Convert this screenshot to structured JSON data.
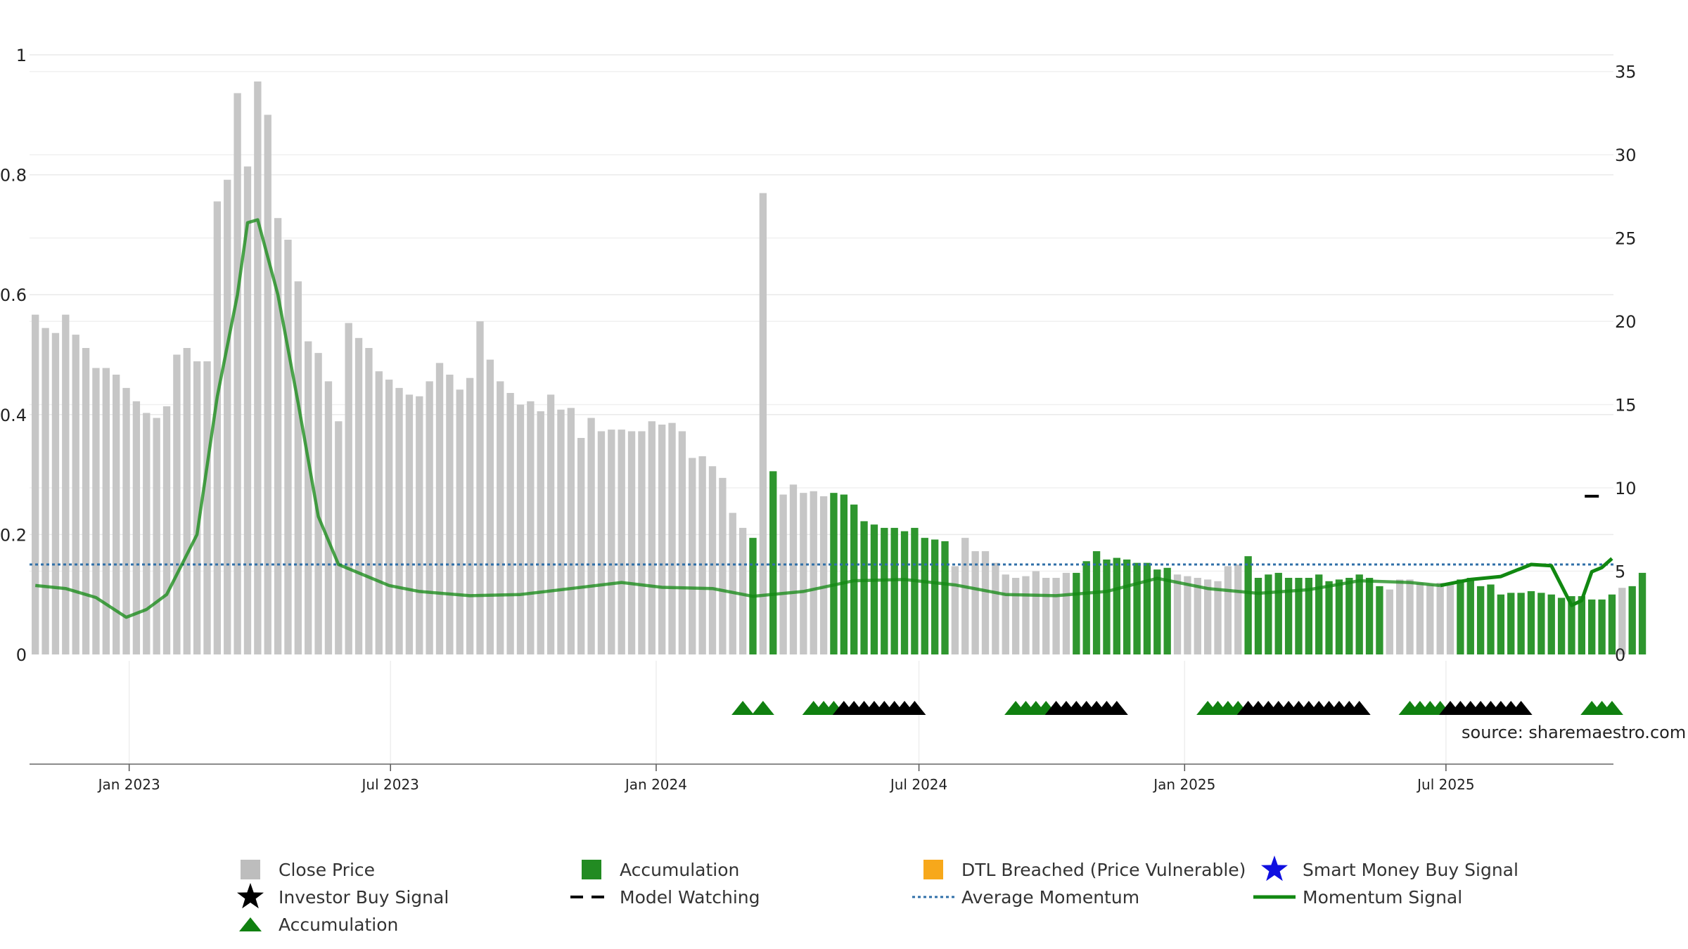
{
  "chart_data": {
    "type": "bar",
    "title": "",
    "y_left": {
      "ticks": [
        0,
        0.2,
        0.4,
        0.6,
        0.8,
        1
      ],
      "tick_labels": [
        "0",
        "0.2",
        "0.4",
        "0.6",
        "0.8",
        "1"
      ],
      "range": [
        0,
        1
      ]
    },
    "y_right": {
      "ticks": [
        0,
        5,
        10,
        15,
        20,
        25,
        30,
        35
      ],
      "range": [
        0,
        36
      ]
    },
    "x_axis": {
      "ticks": [
        "2023-01-01",
        "2023-07-01",
        "2024-01-01",
        "2024-07-01",
        "2025-01-01",
        "2025-07-01"
      ],
      "tick_labels": [
        "Jan 2023",
        "Jul 2023",
        "Jan 2024",
        "Jul 2024",
        "Jan 2025",
        "Jul 2025"
      ],
      "range": [
        "2022-10-24",
        "2025-10-25"
      ]
    },
    "bars": {
      "start": "2022-10-28",
      "interval_days": 7,
      "values": [
        20.4,
        19.6,
        19.3,
        20.4,
        19.2,
        18.4,
        17.2,
        17.2,
        16.8,
        16.0,
        15.2,
        14.5,
        14.2,
        14.9,
        18.0,
        18.4,
        17.6,
        17.6,
        27.2,
        28.5,
        33.7,
        29.3,
        34.4,
        32.4,
        26.2,
        24.9,
        22.4,
        18.8,
        18.1,
        16.4,
        14.0,
        19.9,
        19.0,
        18.4,
        17.0,
        16.5,
        16.0,
        15.6,
        15.5,
        16.4,
        17.5,
        16.8,
        15.9,
        16.6,
        20.0,
        17.7,
        16.4,
        15.7,
        15.0,
        15.2,
        14.6,
        15.6,
        14.7,
        14.8,
        13.0,
        14.2,
        13.4,
        13.5,
        13.5,
        13.4,
        13.4,
        14.0,
        13.8,
        13.9,
        13.4,
        11.8,
        11.9,
        11.3,
        10.6,
        8.5,
        7.6,
        7.0,
        27.7,
        11.0,
        9.6,
        10.2,
        9.7,
        9.8,
        9.5,
        9.7,
        9.6,
        9.0,
        8.0,
        7.8,
        7.6,
        7.6,
        7.4,
        7.6,
        7.0,
        6.9,
        6.8,
        5.3,
        7.0,
        6.2,
        6.2,
        5.5,
        4.8,
        4.6,
        4.7,
        5.0,
        4.6,
        4.6,
        4.9,
        4.9,
        5.6,
        6.2,
        5.7,
        5.8,
        5.7,
        5.5,
        5.5,
        5.1,
        5.2,
        4.8,
        4.7,
        4.6,
        4.5,
        4.4,
        5.3,
        5.4,
        5.9,
        4.6,
        4.8,
        4.9,
        4.6,
        4.6,
        4.6,
        4.8,
        4.4,
        4.5,
        4.6,
        4.8,
        4.6,
        4.1,
        3.9,
        4.5,
        4.5,
        4.3,
        4.2,
        4.3,
        4.3,
        4.5,
        4.6,
        4.1,
        4.2,
        3.6,
        3.7,
        3.7,
        3.8,
        3.7,
        3.6,
        3.4,
        3.5,
        3.5,
        3.3,
        3.3,
        3.6,
        4.0,
        4.1,
        4.9
      ],
      "accumulation_ranges": [
        [
          71,
          71
        ],
        [
          73,
          73
        ],
        [
          79,
          90
        ],
        [
          103,
          112
        ],
        [
          120,
          133
        ],
        [
          141,
          156
        ],
        [
          157,
          157
        ],
        [
          158,
          160
        ]
      ],
      "grey_overrides": [
        157
      ]
    },
    "momentum_line": {
      "x": [
        "2022-10-28",
        "2022-11-18",
        "2022-12-09",
        "2022-12-30",
        "2023-01-13",
        "2023-01-27",
        "2023-02-17",
        "2023-03-03",
        "2023-03-17",
        "2023-03-24",
        "2023-03-31",
        "2023-04-14",
        "2023-04-28",
        "2023-05-12",
        "2023-05-26",
        "2023-06-09",
        "2023-06-30",
        "2023-07-21",
        "2023-08-25",
        "2023-09-29",
        "2023-11-03",
        "2023-12-08",
        "2024-01-05",
        "2024-02-09",
        "2024-03-08",
        "2024-04-12",
        "2024-05-17",
        "2024-06-21",
        "2024-07-26",
        "2024-08-30",
        "2024-10-04",
        "2024-11-08",
        "2024-12-13",
        "2025-01-17",
        "2025-02-21",
        "2025-03-28",
        "2025-05-02",
        "2025-06-06",
        "2025-06-27",
        "2025-07-18",
        "2025-08-08",
        "2025-08-29",
        "2025-09-12",
        "2025-09-26",
        "2025-10-03",
        "2025-10-10",
        "2025-10-17",
        "2025-10-24"
      ],
      "y": [
        0.115,
        0.11,
        0.095,
        0.062,
        0.075,
        0.1,
        0.2,
        0.43,
        0.6,
        0.72,
        0.725,
        0.6,
        0.42,
        0.23,
        0.15,
        0.136,
        0.115,
        0.105,
        0.098,
        0.1,
        0.11,
        0.12,
        0.112,
        0.11,
        0.097,
        0.105,
        0.123,
        0.125,
        0.116,
        0.1,
        0.098,
        0.105,
        0.127,
        0.11,
        0.102,
        0.108,
        0.123,
        0.12,
        0.115,
        0.125,
        0.13,
        0.15,
        0.148,
        0.082,
        0.09,
        0.138,
        0.145,
        0.16
      ],
      "bold_from": "2025-06-27"
    },
    "average_momentum": 0.15,
    "model_watching": {
      "date": "2025-10-10",
      "value": 9.5
    },
    "signals": [
      {
        "date": "2024-03-01",
        "type": "accumulation"
      },
      {
        "date": "2024-03-15",
        "type": "accumulation"
      },
      {
        "date": "2024-04-19",
        "type": "accumulation"
      },
      {
        "date": "2024-04-26",
        "type": "accumulation"
      },
      {
        "date": "2024-05-03",
        "type": "accumulation"
      },
      {
        "date": "2024-05-10",
        "type": "investor"
      },
      {
        "date": "2024-05-17",
        "type": "investor"
      },
      {
        "date": "2024-05-24",
        "type": "investor"
      },
      {
        "date": "2024-05-31",
        "type": "investor"
      },
      {
        "date": "2024-06-07",
        "type": "investor"
      },
      {
        "date": "2024-06-14",
        "type": "investor"
      },
      {
        "date": "2024-06-21",
        "type": "investor"
      },
      {
        "date": "2024-06-28",
        "type": "investor"
      },
      {
        "date": "2024-09-06",
        "type": "accumulation"
      },
      {
        "date": "2024-09-13",
        "type": "accumulation"
      },
      {
        "date": "2024-09-20",
        "type": "accumulation"
      },
      {
        "date": "2024-09-27",
        "type": "accumulation"
      },
      {
        "date": "2024-10-04",
        "type": "investor"
      },
      {
        "date": "2024-10-11",
        "type": "investor"
      },
      {
        "date": "2024-10-18",
        "type": "investor"
      },
      {
        "date": "2024-10-25",
        "type": "investor"
      },
      {
        "date": "2024-11-01",
        "type": "investor"
      },
      {
        "date": "2024-11-08",
        "type": "investor"
      },
      {
        "date": "2024-11-15",
        "type": "investor"
      },
      {
        "date": "2025-01-17",
        "type": "accumulation"
      },
      {
        "date": "2025-01-24",
        "type": "accumulation"
      },
      {
        "date": "2025-01-31",
        "type": "accumulation"
      },
      {
        "date": "2025-02-07",
        "type": "accumulation"
      },
      {
        "date": "2025-02-14",
        "type": "investor"
      },
      {
        "date": "2025-02-21",
        "type": "investor"
      },
      {
        "date": "2025-02-28",
        "type": "investor"
      },
      {
        "date": "2025-03-07",
        "type": "investor"
      },
      {
        "date": "2025-03-14",
        "type": "investor"
      },
      {
        "date": "2025-03-21",
        "type": "investor"
      },
      {
        "date": "2025-03-28",
        "type": "investor"
      },
      {
        "date": "2025-04-04",
        "type": "investor"
      },
      {
        "date": "2025-04-11",
        "type": "investor"
      },
      {
        "date": "2025-04-18",
        "type": "investor"
      },
      {
        "date": "2025-04-25",
        "type": "investor"
      },
      {
        "date": "2025-05-02",
        "type": "investor"
      },
      {
        "date": "2025-06-06",
        "type": "accumulation"
      },
      {
        "date": "2025-06-13",
        "type": "accumulation"
      },
      {
        "date": "2025-06-20",
        "type": "accumulation"
      },
      {
        "date": "2025-06-27",
        "type": "accumulation"
      },
      {
        "date": "2025-07-04",
        "type": "investor"
      },
      {
        "date": "2025-07-11",
        "type": "investor"
      },
      {
        "date": "2025-07-18",
        "type": "investor"
      },
      {
        "date": "2025-07-25",
        "type": "investor"
      },
      {
        "date": "2025-08-01",
        "type": "investor"
      },
      {
        "date": "2025-08-08",
        "type": "investor"
      },
      {
        "date": "2025-08-15",
        "type": "investor"
      },
      {
        "date": "2025-08-22",
        "type": "investor"
      },
      {
        "date": "2025-10-10",
        "type": "accumulation"
      },
      {
        "date": "2025-10-17",
        "type": "accumulation"
      },
      {
        "date": "2025-10-24",
        "type": "accumulation"
      }
    ],
    "legend": [
      {
        "label": "Close Price",
        "symbol": "square",
        "color": "#bdbdbd"
      },
      {
        "label": "Accumulation",
        "symbol": "square",
        "color": "#228b22"
      },
      {
        "label": "DTL Breached (Price Vulnerable)",
        "symbol": "square",
        "color": "#f7a81b"
      },
      {
        "label": "Smart Money Buy Signal",
        "symbol": "star",
        "color": "#1010e0"
      },
      {
        "label": "Investor Buy Signal",
        "symbol": "star",
        "color": "#000000"
      },
      {
        "label": "Model Watching",
        "symbol": "dash",
        "color": "#000000"
      },
      {
        "label": "Average Momentum",
        "symbol": "dotted",
        "color": "#2f6fa8"
      },
      {
        "label": "Momentum Signal",
        "symbol": "line",
        "color": "#118811"
      },
      {
        "label": "Accumulation",
        "symbol": "triangle",
        "color": "#108010"
      }
    ],
    "legend_placement": "bottom",
    "grid": true,
    "watermark": "source: sharemaestro.com"
  },
  "colors": {
    "bar_grey": "#c6c6c6",
    "bar_green": "#2e962e",
    "momentum": "#118811",
    "average": "#2f6fa8",
    "triangle_green": "#108010",
    "triangle_black": "#000000",
    "grid": "#eaeaea",
    "watermark": "#9a9a9a"
  }
}
